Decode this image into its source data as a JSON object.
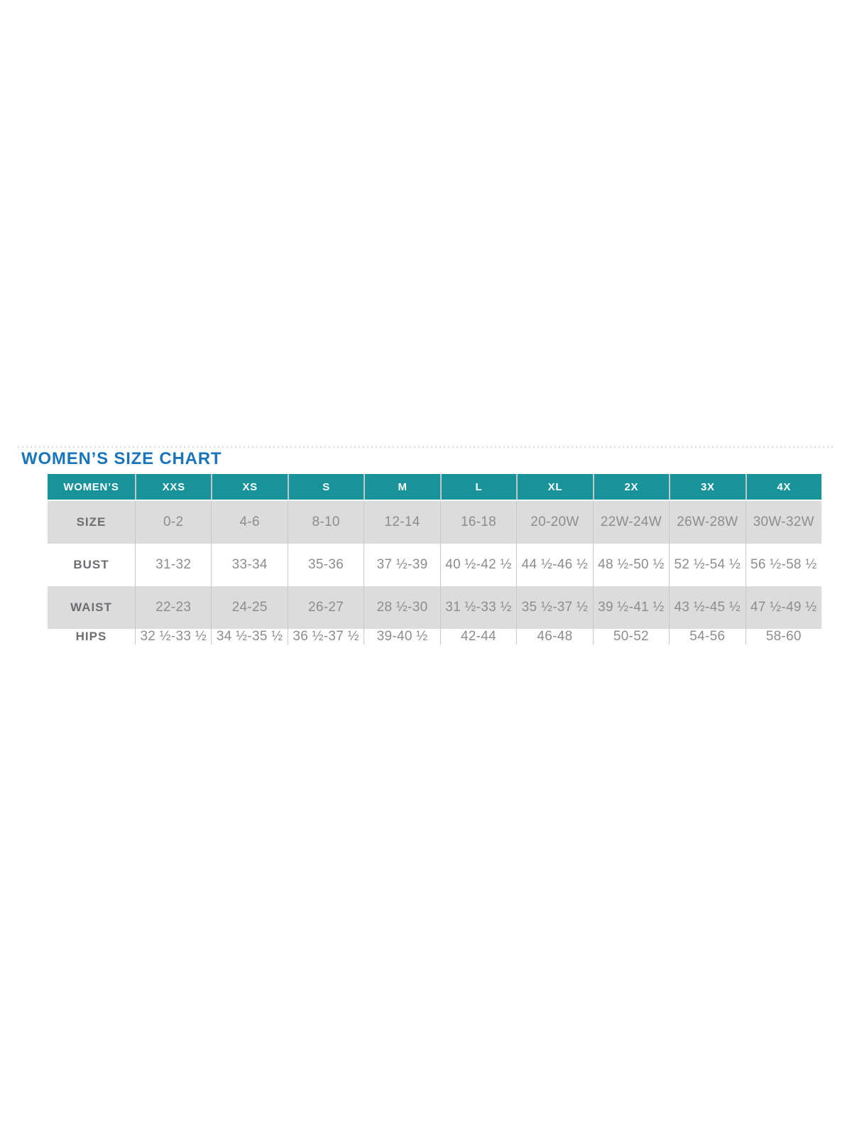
{
  "title": "WOMEN’S SIZE CHART",
  "colors": {
    "title_blue": "#1b75bb",
    "header_teal": "#18939a",
    "row_gray": "#dcdcdc",
    "cell_text": "#8b8d8f",
    "label_text": "#6d6e71"
  },
  "chart_data": {
    "type": "table",
    "columns": [
      "WOMEN’S",
      "XXS",
      "XS",
      "S",
      "M",
      "L",
      "XL",
      "2X",
      "3X",
      "4X"
    ],
    "rows": [
      {
        "label": "SIZE",
        "values": [
          "0-2",
          "4-6",
          "8-10",
          "12-14",
          "16-18",
          "20-20W",
          "22W-24W",
          "26W-28W",
          "30W-32W"
        ]
      },
      {
        "label": "BUST",
        "values": [
          "31-32",
          "33-34",
          "35-36",
          "37 ½-39",
          "40 ½-42 ½",
          "44 ½-46 ½",
          "48 ½-50 ½",
          "52 ½-54 ½",
          "56 ½-58 ½"
        ]
      },
      {
        "label": "WAIST",
        "values": [
          "22-23",
          "24-25",
          "26-27",
          "28 ½-30",
          "31 ½-33 ½",
          "35 ½-37 ½",
          "39 ½-41 ½",
          "43 ½-45 ½",
          "47 ½-49 ½"
        ]
      },
      {
        "label": "HIPS",
        "values": [
          "32 ½-33 ½",
          "34 ½-35 ½",
          "36 ½-37 ½",
          "39-40 ½",
          "42-44",
          "46-48",
          "50-52",
          "54-56",
          "58-60"
        ]
      }
    ]
  }
}
